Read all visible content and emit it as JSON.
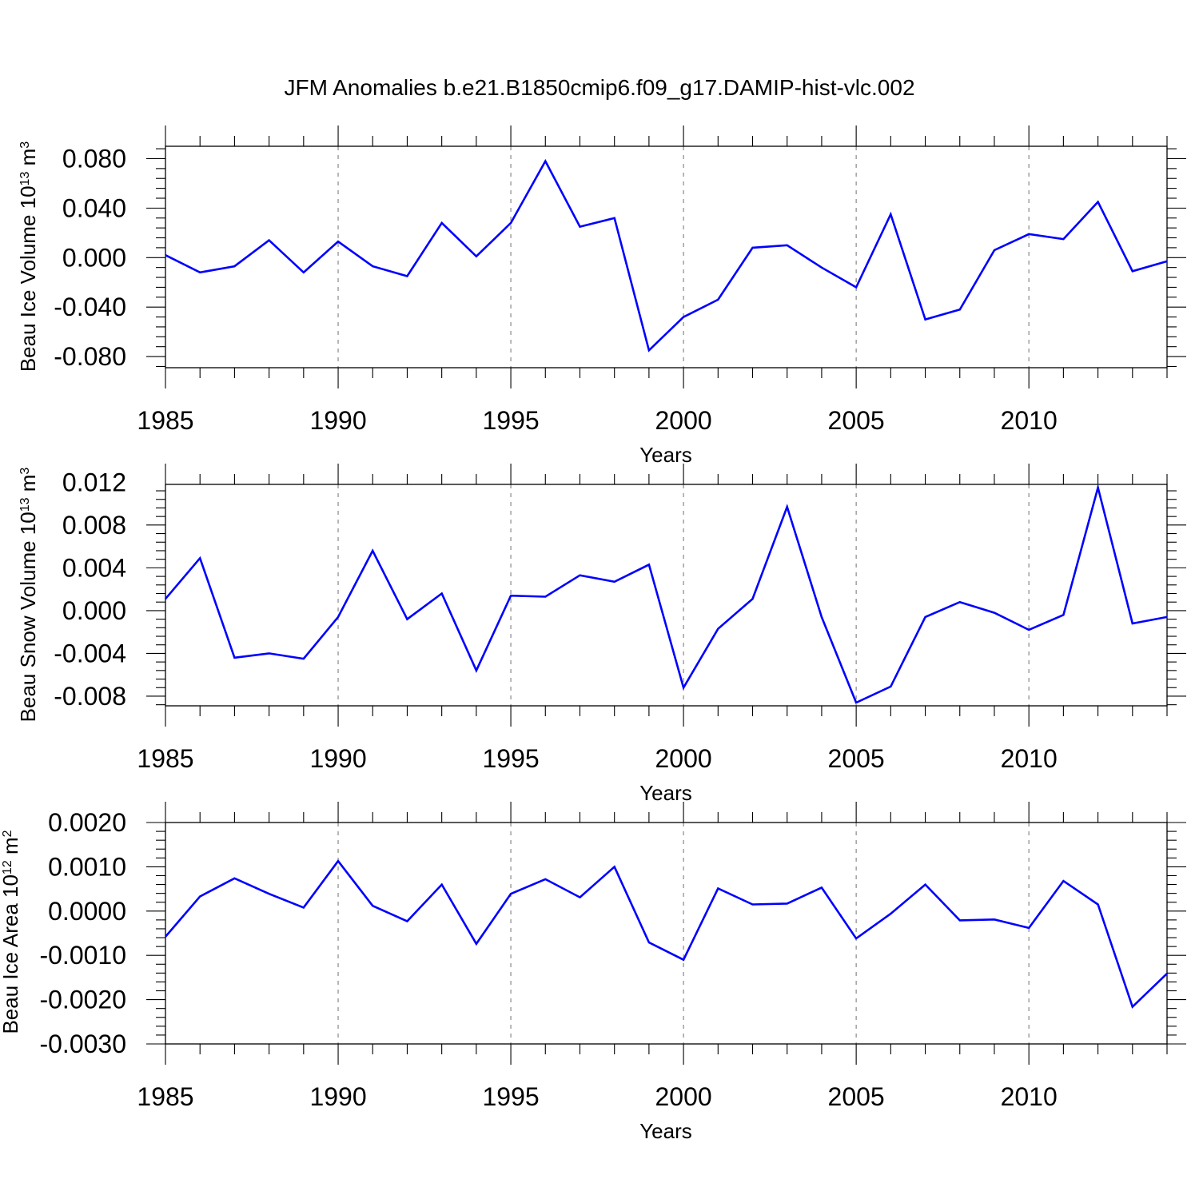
{
  "figure_title": "JFM Anomalies b.e21.B1850cmip6.f09_g17.DAMIP-hist-vlc.002",
  "colors": {
    "series": "#0000ff",
    "grid": "#8a8a8a",
    "axes": "#000000"
  },
  "chart_data": [
    {
      "type": "line",
      "ylabel": "Beau Ice Volume",
      "ylabel_unit_base": "10",
      "ylabel_unit_exp": "13",
      "ylabel_unit_sym": "m",
      "ylabel_unit_pow": "3",
      "xlabel": "Years",
      "xlim": [
        1985,
        2014
      ],
      "ylim": [
        -0.089,
        0.09
      ],
      "xticks": [
        1985,
        1990,
        1995,
        2000,
        2005,
        2010
      ],
      "xtick_labels": [
        "1985",
        "1990",
        "1995",
        "2000",
        "2005",
        "2010"
      ],
      "yticks": [
        -0.08,
        -0.04,
        0.0,
        0.04,
        0.08
      ],
      "ytick_labels": [
        "-0.080",
        "-0.040",
        "0.000",
        "0.040",
        "0.080"
      ],
      "grid": "vertical dashed at major x ticks",
      "x": [
        1985,
        1986,
        1987,
        1988,
        1989,
        1990,
        1991,
        1992,
        1993,
        1994,
        1995,
        1996,
        1997,
        1998,
        1999,
        2000,
        2001,
        2002,
        2003,
        2004,
        2005,
        2006,
        2007,
        2008,
        2009,
        2010,
        2011,
        2012,
        2013,
        2014
      ],
      "values": [
        0.002,
        -0.012,
        -0.007,
        0.014,
        -0.012,
        0.013,
        -0.007,
        -0.015,
        0.028,
        0.001,
        0.028,
        0.078,
        0.025,
        0.032,
        -0.075,
        -0.048,
        -0.034,
        0.008,
        0.01,
        -0.008,
        -0.024,
        0.035,
        -0.05,
        -0.042,
        0.006,
        0.019,
        0.015,
        0.045,
        -0.011,
        -0.003
      ]
    },
    {
      "type": "line",
      "ylabel": "Beau Snow Volume",
      "ylabel_unit_base": "10",
      "ylabel_unit_exp": "13",
      "ylabel_unit_sym": "m",
      "ylabel_unit_pow": "3",
      "xlabel": "Years",
      "xlim": [
        1985,
        2014
      ],
      "ylim": [
        -0.0089,
        0.0118
      ],
      "xticks": [
        1985,
        1990,
        1995,
        2000,
        2005,
        2010
      ],
      "xtick_labels": [
        "1985",
        "1990",
        "1995",
        "2000",
        "2005",
        "2010"
      ],
      "yticks": [
        -0.008,
        -0.004,
        0.0,
        0.004,
        0.008,
        0.012
      ],
      "ytick_labels": [
        "-0.008",
        "-0.004",
        "0.000",
        "0.004",
        "0.008",
        "0.012"
      ],
      "grid": "vertical dashed at major x ticks",
      "x": [
        1985,
        1986,
        1987,
        1988,
        1989,
        1990,
        1991,
        1992,
        1993,
        1994,
        1995,
        1996,
        1997,
        1998,
        1999,
        2000,
        2001,
        2002,
        2003,
        2004,
        2005,
        2006,
        2007,
        2008,
        2009,
        2010,
        2011,
        2012,
        2013,
        2014
      ],
      "values": [
        0.0011,
        0.0049,
        -0.0044,
        -0.004,
        -0.0045,
        -0.0006,
        0.0056,
        -0.0008,
        0.0016,
        -0.0056,
        0.0014,
        0.0013,
        0.0033,
        0.0027,
        0.0043,
        -0.0072,
        -0.0017,
        0.0011,
        0.0097,
        -0.0006,
        -0.0086,
        -0.0071,
        -0.0006,
        0.0008,
        -0.0002,
        -0.0018,
        -0.0004,
        0.0115,
        -0.0012,
        -0.0006
      ]
    },
    {
      "type": "line",
      "ylabel": "Beau Ice Area",
      "ylabel_unit_base": "10",
      "ylabel_unit_exp": "12",
      "ylabel_unit_sym": "m",
      "ylabel_unit_pow": "2",
      "xlabel": "Years",
      "xlim": [
        1985,
        2014
      ],
      "ylim": [
        -0.003,
        0.002
      ],
      "xticks": [
        1985,
        1990,
        1995,
        2000,
        2005,
        2010
      ],
      "xtick_labels": [
        "1985",
        "1990",
        "1995",
        "2000",
        "2005",
        "2010"
      ],
      "yticks": [
        -0.003,
        -0.002,
        -0.001,
        0.0,
        0.001,
        0.002
      ],
      "ytick_labels": [
        "-0.0030",
        "-0.0020",
        "-0.0010",
        "0.0000",
        "0.0010",
        "0.0020"
      ],
      "grid": "vertical dashed at major x ticks",
      "x": [
        1985,
        1986,
        1987,
        1988,
        1989,
        1990,
        1991,
        1992,
        1993,
        1994,
        1995,
        1996,
        1997,
        1998,
        1999,
        2000,
        2001,
        2002,
        2003,
        2004,
        2005,
        2006,
        2007,
        2008,
        2009,
        2010,
        2011,
        2012,
        2013,
        2014
      ],
      "values": [
        -0.00058,
        0.00033,
        0.00074,
        0.00039,
        8e-05,
        0.00113,
        0.00012,
        -0.00023,
        0.0006,
        -0.00074,
        0.00039,
        0.00072,
        0.00031,
        0.001,
        -0.00071,
        -0.0011,
        0.00051,
        0.00015,
        0.00017,
        0.00053,
        -0.00062,
        -6e-05,
        0.0006,
        -0.00021,
        -0.00019,
        -0.00038,
        0.00068,
        0.00015,
        -0.00216,
        -0.00141
      ]
    }
  ]
}
